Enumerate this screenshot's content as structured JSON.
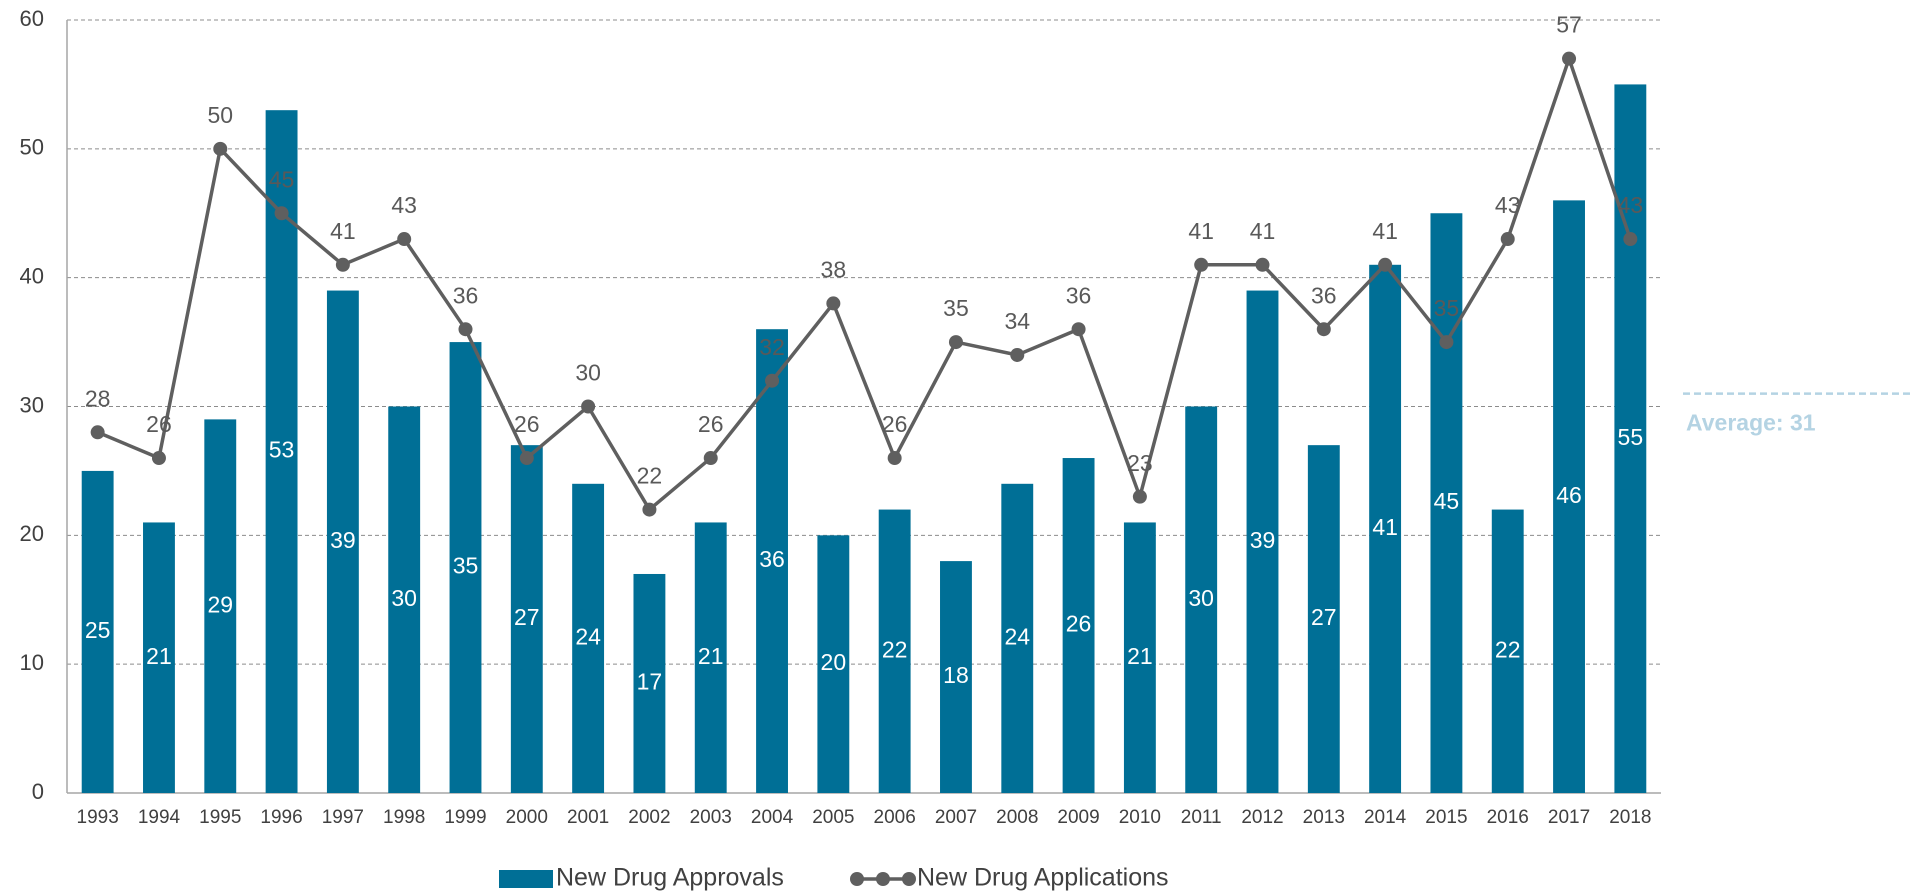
{
  "chart_data": {
    "type": "bar_line",
    "categories": [
      "1993",
      "1994",
      "1995",
      "1996",
      "1997",
      "1998",
      "1999",
      "2000",
      "2001",
      "2002",
      "2003",
      "2004",
      "2005",
      "2006",
      "2007",
      "2008",
      "2009",
      "2010",
      "2011",
      "2012",
      "2013",
      "2014",
      "2015",
      "2016",
      "2017",
      "2018"
    ],
    "series": [
      {
        "name": "New Drug Approvals",
        "type": "bar",
        "color": "#006f96",
        "values": [
          25,
          21,
          29,
          53,
          39,
          30,
          35,
          27,
          24,
          17,
          21,
          36,
          20,
          22,
          18,
          24,
          26,
          21,
          30,
          39,
          27,
          41,
          45,
          22,
          46,
          55
        ]
      },
      {
        "name": "New Drug Applications",
        "type": "line",
        "color": "#5f5f5f",
        "values": [
          28,
          26,
          50,
          45,
          41,
          43,
          36,
          26,
          30,
          22,
          26,
          32,
          38,
          26,
          35,
          34,
          36,
          23,
          41,
          41,
          36,
          41,
          35,
          43,
          57,
          43
        ]
      }
    ],
    "ylim": [
      0,
      60
    ],
    "yticks": [
      0,
      10,
      20,
      30,
      40,
      50,
      60
    ],
    "grid": true,
    "legend": "bottom",
    "annotations": [
      {
        "value": 31,
        "label": "Average: 31",
        "color": "#b4d3e3"
      }
    ]
  }
}
